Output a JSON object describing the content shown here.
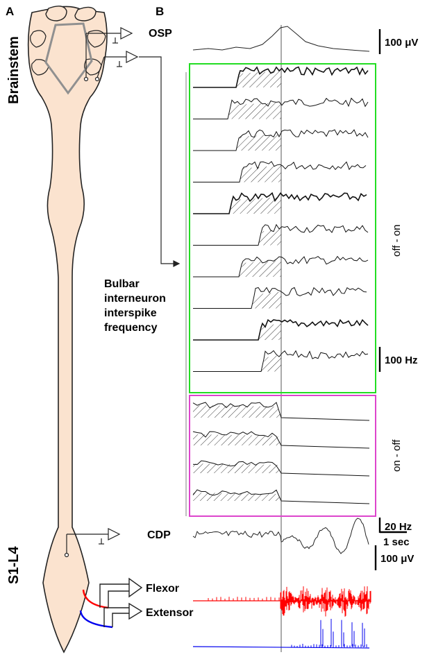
{
  "panels": {
    "a": "A",
    "b": "B"
  },
  "regions": {
    "brainstem": "Brainstem",
    "s1l4": "S1-L4"
  },
  "recordings": {
    "osp": "OSP",
    "cdp": "CDP",
    "flexor": "Flexor",
    "extensor": "Extensor",
    "bulbar": [
      "Bulbar",
      "interneuron",
      "interspike",
      "frequency"
    ]
  },
  "groups": {
    "off_on": "off - on",
    "on_off": "on - off"
  },
  "scale_bars": {
    "osp": "100 μV",
    "cdp": "100 μV",
    "hz_100": "100 Hz",
    "hz_20": "20 Hz",
    "time": "1 sec"
  },
  "colors": {
    "spinal_cord_fill": "#fbe3cf",
    "spinal_cord_stroke": "#222222",
    "off_on_box": "#22dd22",
    "on_off_box": "#dd44cc",
    "flexor_trace": "#ff0000",
    "extensor_trace": "#0000ee",
    "electrode_gray": "#909090"
  },
  "traces": {
    "off_on_count": 10,
    "on_off_count": 4
  }
}
